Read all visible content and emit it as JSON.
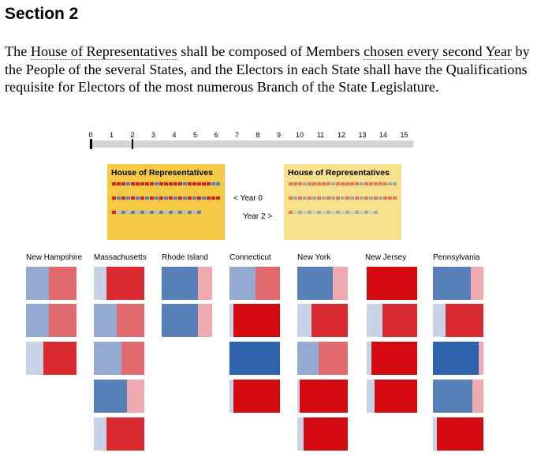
{
  "heading": "Section 2",
  "passage": {
    "p1": "The ",
    "link1": "House of Representatives",
    "p2": " shall be composed of Members ",
    "link2": "chosen every second Year",
    "p3": " by the People of the several States, and the Electors in each State shall have the Qualifications requisite for Electors of the most numerous Branch of the State Legislature."
  },
  "timeline": {
    "ticks": [
      "0",
      "1",
      "2",
      "3",
      "4",
      "5",
      "6",
      "7",
      "8",
      "9",
      "10",
      "11",
      "12",
      "13",
      "14",
      "15"
    ],
    "markers": [
      0,
      2
    ]
  },
  "house_panels": [
    {
      "title": "House of Representatives",
      "year": 0,
      "background": "#f6c944",
      "opacity": 1
    },
    {
      "title": "House of Representatives",
      "year": 2,
      "background": "#f8e08c",
      "opacity": 0.55
    }
  ],
  "seat_colors": {
    "red": "#d32128",
    "blue": "#5a7eb5",
    "light_blue": "#a9bddb"
  },
  "year_nav": {
    "prev": "< Year 0",
    "next": "Year 2 >"
  },
  "state_colors": {
    "light_blue": "#c6d3e6",
    "mid_blue": "#93abd1",
    "blue": "#577fb8",
    "dark_blue": "#2f62ac",
    "pink": "#efaab0",
    "salmon": "#e06a6e",
    "red": "#d82a30",
    "dark_red": "#d40a10"
  },
  "states": [
    {
      "name": "New Hampshire",
      "boxes": [
        [
          [
            "mid_blue",
            0.45
          ],
          [
            "salmon",
            0.55
          ]
        ],
        [
          [
            "mid_blue",
            0.45
          ],
          [
            "salmon",
            0.55
          ]
        ],
        [
          [
            "light_blue",
            0.35
          ],
          [
            "red",
            0.65
          ]
        ]
      ]
    },
    {
      "name": "Massachusetts",
      "boxes": [
        [
          [
            "light_blue",
            0.25
          ],
          [
            "red",
            0.75
          ]
        ],
        [
          [
            "mid_blue",
            0.45
          ],
          [
            "salmon",
            0.55
          ]
        ],
        [
          [
            "mid_blue",
            0.55
          ],
          [
            "salmon",
            0.45
          ]
        ],
        [
          [
            "blue",
            0.65
          ],
          [
            "pink",
            0.35
          ]
        ],
        [
          [
            "light_blue",
            0.25
          ],
          [
            "red",
            0.75
          ]
        ]
      ]
    },
    {
      "name": "Rhode Island",
      "boxes": [
        [
          [
            "blue",
            0.72
          ],
          [
            "pink",
            0.28
          ]
        ],
        [
          [
            "blue",
            0.72
          ],
          [
            "pink",
            0.28
          ]
        ]
      ]
    },
    {
      "name": "Connecticut",
      "boxes": [
        [
          [
            "mid_blue",
            0.52
          ],
          [
            "salmon",
            0.48
          ]
        ],
        [
          [
            "light_blue",
            0.08
          ],
          [
            "dark_red",
            0.92
          ]
        ],
        [
          [
            "dark_blue",
            1.0
          ]
        ],
        [
          [
            "light_blue",
            0.08
          ],
          [
            "dark_red",
            0.92
          ]
        ]
      ]
    },
    {
      "name": "New York",
      "boxes": [
        [
          [
            "blue",
            0.7
          ],
          [
            "pink",
            0.3
          ]
        ],
        [
          [
            "light_blue",
            0.28
          ],
          [
            "red",
            0.72
          ]
        ],
        [
          [
            "mid_blue",
            0.42
          ],
          [
            "salmon",
            0.58
          ]
        ],
        [
          [
            "light_blue",
            0.05
          ],
          [
            "dark_red",
            0.95
          ]
        ],
        [
          [
            "light_blue",
            0.12
          ],
          [
            "dark_red",
            0.88
          ]
        ]
      ]
    },
    {
      "name": "New Jersey",
      "boxes": [
        [
          [
            "dark_red",
            1.0
          ]
        ],
        [
          [
            "light_blue",
            0.32
          ],
          [
            "red",
            0.68
          ]
        ],
        [
          [
            "light_blue",
            0.1
          ],
          [
            "dark_red",
            0.9
          ]
        ],
        [
          [
            "light_blue",
            0.15
          ],
          [
            "dark_red",
            0.85
          ]
        ]
      ]
    },
    {
      "name": "Pennsylvania",
      "boxes": [
        [
          [
            "blue",
            0.75
          ],
          [
            "pink",
            0.25
          ]
        ],
        [
          [
            "light_blue",
            0.25
          ],
          [
            "red",
            0.75
          ]
        ],
        [
          [
            "dark_blue",
            0.9
          ],
          [
            "pink",
            0.1
          ]
        ],
        [
          [
            "blue",
            0.78
          ],
          [
            "pink",
            0.22
          ]
        ],
        [
          [
            "light_blue",
            0.08
          ],
          [
            "dark_red",
            0.92
          ]
        ]
      ]
    }
  ]
}
